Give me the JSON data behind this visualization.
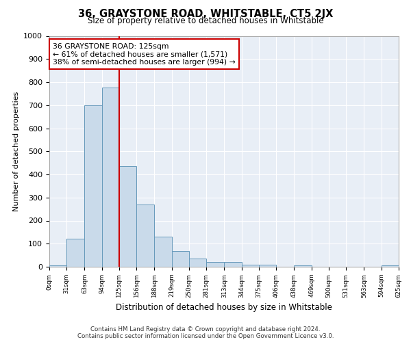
{
  "title": "36, GRAYSTONE ROAD, WHITSTABLE, CT5 2JX",
  "subtitle": "Size of property relative to detached houses in Whitstable",
  "xlabel": "Distribution of detached houses by size in Whitstable",
  "ylabel": "Number of detached properties",
  "footnote1": "Contains HM Land Registry data © Crown copyright and database right 2024.",
  "footnote2": "Contains public sector information licensed under the Open Government Licence v3.0.",
  "bar_color": "#c9daea",
  "bar_edge_color": "#6699bb",
  "background_color": "#e8eef6",
  "vline_x": 125,
  "vline_color": "#cc0000",
  "annotation_line1": "36 GRAYSTONE ROAD: 125sqm",
  "annotation_line2": "← 61% of detached houses are smaller (1,571)",
  "annotation_line3": "38% of semi-detached houses are larger (994) →",
  "annotation_box_color": "#cc0000",
  "bins": [
    0,
    31,
    63,
    94,
    125,
    156,
    188,
    219,
    250,
    281,
    313,
    344,
    375,
    406,
    438,
    469,
    500,
    531,
    563,
    594,
    625
  ],
  "counts": [
    5,
    122,
    700,
    775,
    435,
    270,
    130,
    68,
    37,
    22,
    20,
    10,
    10,
    0,
    5,
    0,
    0,
    0,
    0,
    7
  ],
  "ylim": [
    0,
    1000
  ],
  "yticks": [
    0,
    100,
    200,
    300,
    400,
    500,
    600,
    700,
    800,
    900,
    1000
  ]
}
